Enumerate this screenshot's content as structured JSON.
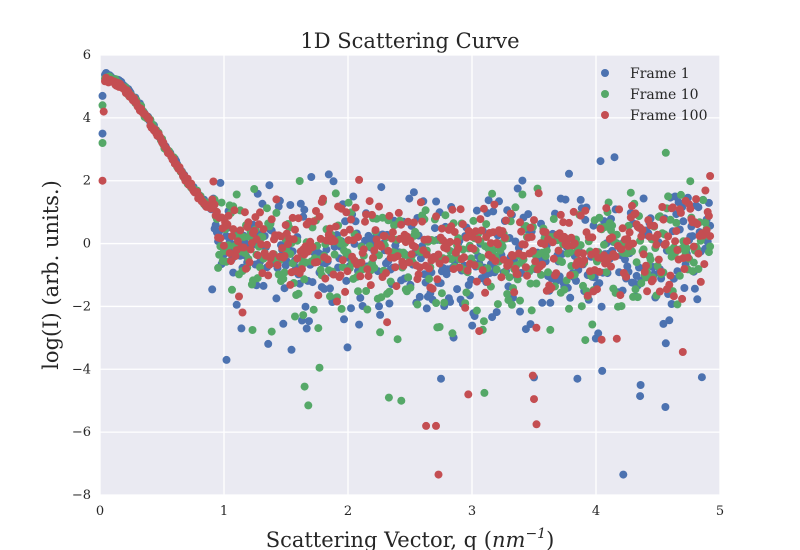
{
  "chart_data": {
    "type": "scatter",
    "title": "1D Scattering Curve",
    "xlabel_prefix": "Scattering Vector, q (",
    "xlabel_unit": "nm",
    "xlabel_exponent": "−1",
    "xlabel_suffix": ")",
    "ylabel": "log(I) (arb. units.)",
    "xlim": [
      0,
      5
    ],
    "ylim": [
      -8,
      6
    ],
    "x_ticks": [
      0,
      1,
      2,
      3,
      4,
      5
    ],
    "y_ticks": [
      -8,
      -6,
      -4,
      -2,
      0,
      2,
      4,
      6
    ],
    "x_tick_labels": [
      "0",
      "1",
      "2",
      "3",
      "4",
      "5"
    ],
    "y_tick_labels": [
      "−8",
      "−6",
      "−4",
      "−2",
      "0",
      "2",
      "4",
      "6"
    ],
    "grid": true,
    "legend_position": "top-right",
    "series": [
      {
        "name": "Frame 1",
        "color": "#4c72b0",
        "seed": 11,
        "outliers": [
          [
            0.02,
            3.5
          ],
          [
            0.02,
            4.7
          ],
          [
            1.02,
            -3.7
          ],
          [
            4.22,
            -7.35
          ],
          [
            4.56,
            -5.2
          ],
          [
            4.36,
            -4.5
          ],
          [
            1.14,
            -2.7
          ],
          [
            3.85,
            -4.3
          ],
          [
            2.75,
            -4.3
          ],
          [
            4.05,
            -4.05
          ]
        ]
      },
      {
        "name": "Frame 10",
        "color": "#55a868",
        "seed": 23,
        "outliers": [
          [
            0.02,
            3.2
          ],
          [
            0.02,
            4.4
          ],
          [
            1.68,
            -5.15
          ],
          [
            2.33,
            -4.9
          ],
          [
            2.43,
            -5.0
          ],
          [
            1.65,
            -4.55
          ],
          [
            1.77,
            -3.95
          ],
          [
            3.1,
            -4.75
          ],
          [
            1.23,
            -2.75
          ]
        ]
      },
      {
        "name": "Frame 100",
        "color": "#c44e52",
        "seed": 37,
        "outliers": [
          [
            0.02,
            2.0
          ],
          [
            0.03,
            4.2
          ],
          [
            2.73,
            -7.35
          ],
          [
            2.63,
            -5.8
          ],
          [
            2.71,
            -5.8
          ],
          [
            3.52,
            -5.75
          ],
          [
            3.5,
            -4.95
          ],
          [
            3.49,
            -4.2
          ],
          [
            2.97,
            -4.8
          ],
          [
            4.92,
            2.15
          ],
          [
            4.7,
            -3.45
          ]
        ]
      }
    ]
  }
}
